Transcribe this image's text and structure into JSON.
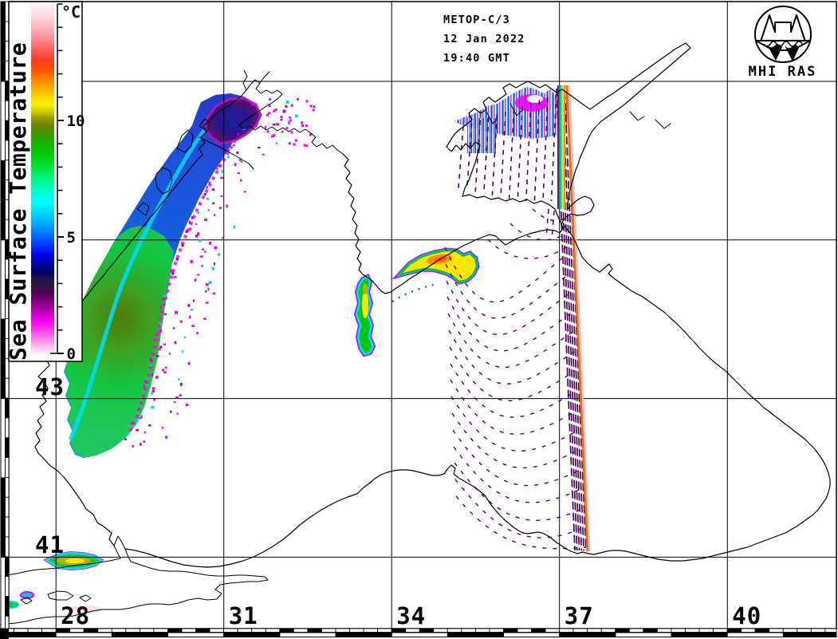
{
  "header": {
    "satellite": "METOP-C/3",
    "date": "12 Jan 2022",
    "time": "19:40 GMT",
    "logo_text": "MHI RAS"
  },
  "colorbar": {
    "title": "Sea Surface Temperature",
    "unit": "°C",
    "min": 0,
    "max": 15,
    "minor_tick_step": 1,
    "major_ticks": [
      0,
      5,
      10
    ],
    "major_tick_labels": [
      "0",
      "5",
      "10"
    ],
    "gradient_stops": [
      [
        15,
        "#fff2f5"
      ],
      [
        14.5,
        "#ffd8e0"
      ],
      [
        14,
        "#ffb4c0"
      ],
      [
        13.5,
        "#ff8a96"
      ],
      [
        13,
        "#ff5a5a"
      ],
      [
        12.6,
        "#fa3c28"
      ],
      [
        12.2,
        "#ff5000"
      ],
      [
        11.8,
        "#ff7d00"
      ],
      [
        11.4,
        "#ffaa00"
      ],
      [
        11,
        "#ffd700"
      ],
      [
        10.7,
        "#f5f000"
      ],
      [
        10.4,
        "#d2d200"
      ],
      [
        10.1,
        "#9b9b00"
      ],
      [
        9.8,
        "#6e8200"
      ],
      [
        9.4,
        "#3c9600"
      ],
      [
        9,
        "#14b400"
      ],
      [
        8.5,
        "#00cd0a"
      ],
      [
        8,
        "#00e63c"
      ],
      [
        7.5,
        "#00f582"
      ],
      [
        7,
        "#00ffc8"
      ],
      [
        6.5,
        "#00ffff"
      ],
      [
        6,
        "#00d2ff"
      ],
      [
        5.5,
        "#00a0ff"
      ],
      [
        5,
        "#0064ff"
      ],
      [
        4.6,
        "#0032ff"
      ],
      [
        4.2,
        "#0000e6"
      ],
      [
        3.8,
        "#0000a0"
      ],
      [
        3.5,
        "#000064"
      ],
      [
        3.2,
        "#1e1450"
      ],
      [
        2.9,
        "#32143c"
      ],
      [
        2.6,
        "#50005a"
      ],
      [
        2.3,
        "#780078"
      ],
      [
        2,
        "#a000a0"
      ],
      [
        1.7,
        "#c800c8"
      ],
      [
        1.4,
        "#f000f0"
      ],
      [
        1.1,
        "#ff28f0"
      ],
      [
        0.8,
        "#ff64e6"
      ],
      [
        0.5,
        "#ff96e6"
      ],
      [
        0.25,
        "#ffc8ee"
      ],
      [
        0,
        "#ffe6f8"
      ]
    ]
  },
  "map": {
    "longitude_labels": [
      {
        "text": "28",
        "deg": 28
      },
      {
        "text": "31",
        "deg": 31
      },
      {
        "text": "34",
        "deg": 34
      },
      {
        "text": "37",
        "deg": 37
      },
      {
        "text": "40",
        "deg": 40
      }
    ],
    "latitude_labels": [
      {
        "text": "43",
        "deg": 43
      },
      {
        "text": "41",
        "deg": 41
      }
    ],
    "grid_longitudes": [
      28,
      31,
      34,
      37,
      40
    ],
    "grid_latitudes": [
      47,
      45,
      43,
      41
    ]
  },
  "swath": {
    "scan_dash_color": "#52005f",
    "dense_strip_color": "#4c005c",
    "edge_line_color": "#dc7814",
    "edge_shadow_color": "#ffb4be",
    "rainbow_edge_colors": [
      "#8a00a0",
      "#00b43c",
      "#00e6ff",
      "#ffe000",
      "#ff8c00"
    ],
    "azov_stripe_colors": [
      "#2a46e6",
      "#ffffff",
      "#e81ee8",
      "#ffffff",
      "#00dcff"
    ]
  },
  "chart_data": {
    "type": "heatmap",
    "title": "Sea Surface Temperature",
    "units": "°C",
    "scale_range": [
      0,
      15
    ],
    "scale_ticks": [
      0,
      5,
      10
    ],
    "x_axis_longitude_deg": [
      28,
      31,
      34,
      37,
      40
    ],
    "y_axis_latitude_deg": [
      43,
      41
    ],
    "grid": "on",
    "legend_position": "upper-left",
    "annotations": [
      "METOP-C/3",
      "12 Jan 2022",
      "19:40 GMT",
      "MHI RAS"
    ]
  }
}
